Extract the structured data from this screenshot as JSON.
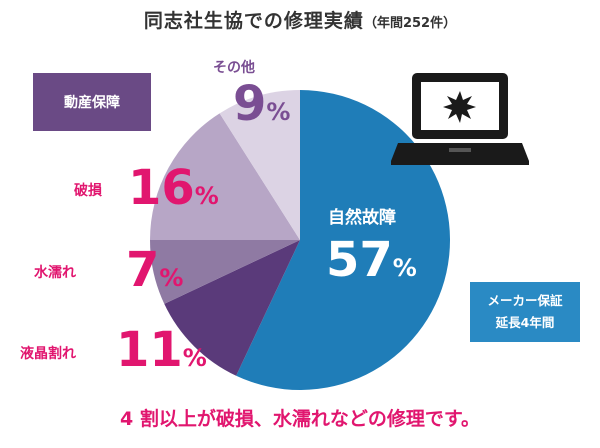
{
  "title": {
    "main": "同志社生協での修理実績",
    "sub": "（年間252件）"
  },
  "category_box": "動産保障",
  "warranty_box": {
    "line1": "メーカー保証",
    "line2": "延長4年間"
  },
  "footer": "4 割以上が破損、水濡れなどの修理です。",
  "labels": {
    "natural": {
      "name": "自然故障",
      "value": "57",
      "unit": "%"
    },
    "breakage": {
      "name": "破損",
      "value": "16",
      "unit": "%"
    },
    "water": {
      "name": "水濡れ",
      "value": "7",
      "unit": "%"
    },
    "liquid_crystal": {
      "name": "液晶割れ",
      "value": "11",
      "unit": "%"
    },
    "other": {
      "name": "その他",
      "value": "9",
      "unit": "%"
    }
  },
  "icons": {
    "laptop": "laptop-broken-screen-icon"
  },
  "colors": {
    "natural": "#1f7db8",
    "liquid_crystal": "#5a3a7a",
    "water": "#8f7aa3",
    "breakage": "#b7a6c6",
    "other": "#dcd3e4",
    "pink": "#e1166f"
  },
  "chart_data": {
    "type": "pie",
    "title": "同志社生協での修理実績（年間252件）",
    "categories": [
      "自然故障",
      "液晶割れ",
      "水濡れ",
      "破損",
      "その他"
    ],
    "values": [
      57,
      11,
      7,
      16,
      9
    ],
    "unit": "%"
  }
}
